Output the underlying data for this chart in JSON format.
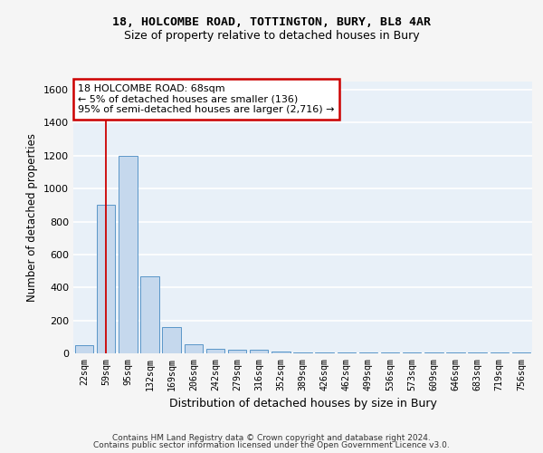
{
  "title1": "18, HOLCOMBE ROAD, TOTTINGTON, BURY, BL8 4AR",
  "title2": "Size of property relative to detached houses in Bury",
  "xlabel": "Distribution of detached houses by size in Bury",
  "ylabel": "Number of detached properties",
  "footer1": "Contains HM Land Registry data © Crown copyright and database right 2024.",
  "footer2": "Contains public sector information licensed under the Open Government Licence v3.0.",
  "categories": [
    "22sqm",
    "59sqm",
    "95sqm",
    "132sqm",
    "169sqm",
    "206sqm",
    "242sqm",
    "279sqm",
    "316sqm",
    "352sqm",
    "389sqm",
    "426sqm",
    "462sqm",
    "499sqm",
    "536sqm",
    "573sqm",
    "609sqm",
    "646sqm",
    "683sqm",
    "719sqm",
    "756sqm"
  ],
  "values": [
    50,
    900,
    1200,
    470,
    160,
    55,
    30,
    20,
    20,
    10,
    5,
    3,
    3,
    3,
    3,
    3,
    3,
    3,
    3,
    3,
    3
  ],
  "bar_color": "#c5d8ed",
  "bar_edge_color": "#5a96c8",
  "plot_bg_color": "#e8f0f8",
  "fig_bg_color": "#f5f5f5",
  "grid_color": "#ffffff",
  "vline_x_idx": 1,
  "vline_color": "#cc0000",
  "annotation_line1": "18 HOLCOMBE ROAD: 68sqm",
  "annotation_line2": "← 5% of detached houses are smaller (136)",
  "annotation_line3": "95% of semi-detached houses are larger (2,716) →",
  "annotation_box_facecolor": "#ffffff",
  "annotation_box_edgecolor": "#cc0000",
  "ylim": [
    0,
    1650
  ],
  "yticks": [
    0,
    200,
    400,
    600,
    800,
    1000,
    1200,
    1400,
    1600
  ]
}
